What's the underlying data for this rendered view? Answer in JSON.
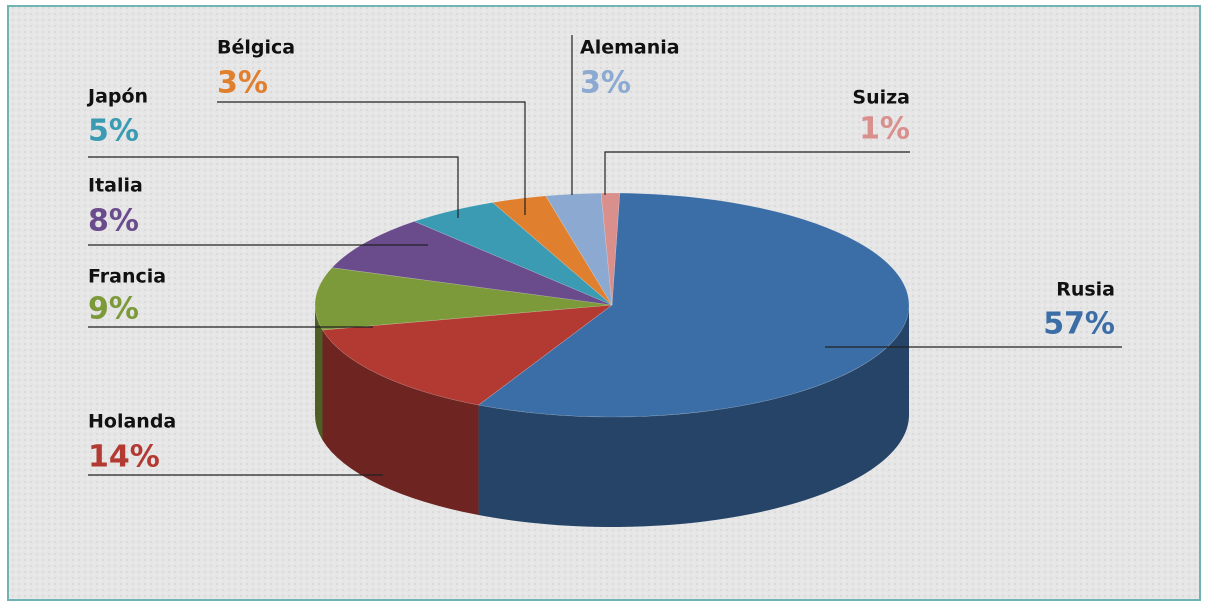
{
  "chart_data": {
    "type": "pie",
    "categories": [
      "Rusia",
      "Holanda",
      "Francia",
      "Italia",
      "Japón",
      "Bélgica",
      "Alemania",
      "Suiza"
    ],
    "values": [
      57,
      14,
      9,
      8,
      5,
      3,
      3,
      1
    ],
    "value_labels": [
      "57%",
      "14%",
      "9%",
      "8%",
      "5%",
      "3%",
      "3%",
      "1%"
    ],
    "colors": [
      "#3b6ea6",
      "#b23a33",
      "#7d9a3b",
      "#6a4b8c",
      "#3a9bb2",
      "#e07f2e",
      "#8ba9d1",
      "#d98f8c"
    ]
  }
}
